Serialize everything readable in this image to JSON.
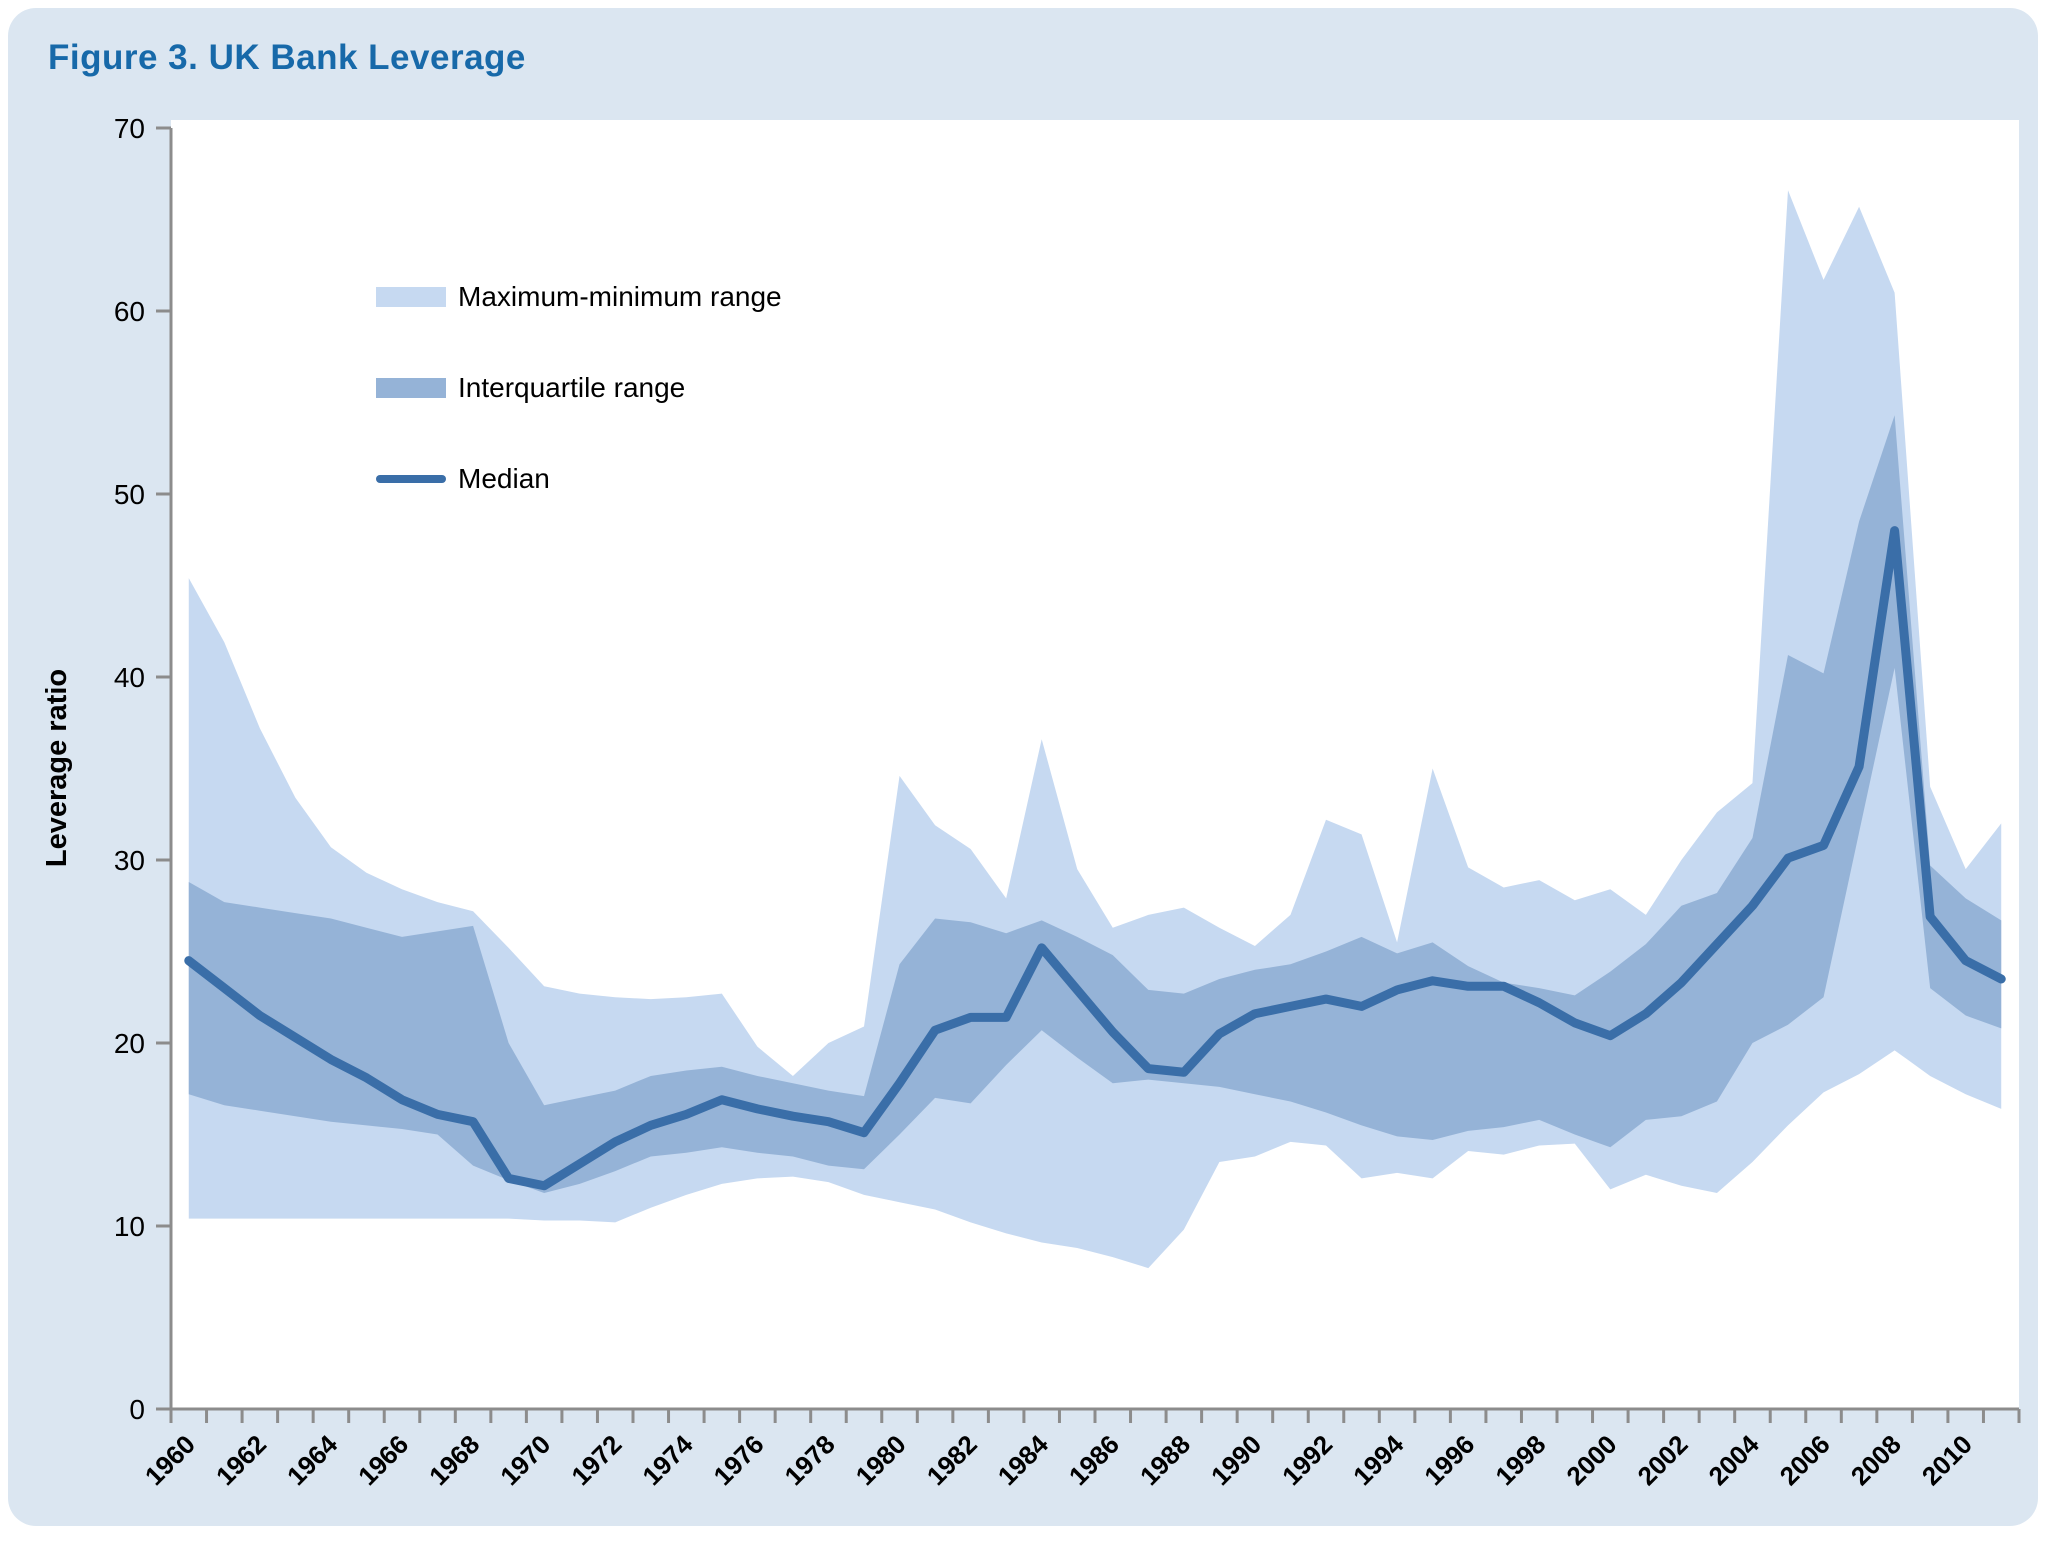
{
  "title": "Figure 3. UK Bank Leverage",
  "y_axis": {
    "label": "Leverage ratio",
    "ticks": [
      0,
      10,
      20,
      30,
      40,
      50,
      60,
      70
    ],
    "min": 0,
    "max": 70
  },
  "x_axis": {
    "labels": [
      "1960",
      "1962",
      "1964",
      "1966",
      "1968",
      "1970",
      "1972",
      "1974",
      "1976",
      "1978",
      "1980",
      "1982",
      "1984",
      "1986",
      "1988",
      "1990",
      "1992",
      "1994",
      "1996",
      "1998",
      "2000",
      "2002",
      "2004",
      "2006",
      "2008",
      "2010"
    ]
  },
  "legend": {
    "items": [
      {
        "label": "Maximum-minimum range",
        "type": "band",
        "color": "#C6D9F1"
      },
      {
        "label": "Interquartile range",
        "type": "band",
        "color": "#95B3D7"
      },
      {
        "label": "Median",
        "type": "line",
        "color": "#3A6EA8"
      }
    ]
  },
  "colors": {
    "page_background": "#DBE6F1",
    "plot_background": "#FFFFFF",
    "band_light": "#C6D9F1",
    "band_medium": "#95B3D7",
    "median_line": "#3A6EA8",
    "axis": "#8C8C8C",
    "title_text": "#1769A9"
  },
  "chart_data": {
    "type": "area",
    "title": "Figure 3. UK Bank Leverage",
    "xlabel": "",
    "ylabel": "Leverage ratio",
    "ylim": [
      0,
      70
    ],
    "grid": false,
    "legend_position": "upper-left",
    "x": [
      1960,
      1961,
      1962,
      1963,
      1964,
      1965,
      1966,
      1967,
      1968,
      1969,
      1970,
      1971,
      1972,
      1973,
      1974,
      1975,
      1976,
      1977,
      1978,
      1979,
      1980,
      1981,
      1982,
      1983,
      1984,
      1985,
      1986,
      1987,
      1988,
      1989,
      1990,
      1991,
      1992,
      1993,
      1994,
      1995,
      1996,
      1997,
      1998,
      1999,
      2000,
      2001,
      2002,
      2003,
      2004,
      2005,
      2006,
      2007,
      2008,
      2009,
      2010,
      2011
    ],
    "series": [
      {
        "name": "Maximum",
        "values": [
          45.4,
          41.9,
          37.2,
          33.4,
          30.7,
          29.3,
          28.4,
          27.7,
          27.2,
          25.2,
          23.1,
          22.7,
          22.5,
          22.4,
          22.5,
          22.7,
          19.8,
          18.2,
          20.0,
          20.9,
          34.6,
          31.9,
          30.6,
          27.9,
          36.6,
          29.5,
          26.3,
          27.0,
          27.4,
          26.3,
          25.3,
          27.0,
          32.2,
          31.4,
          25.5,
          35.0,
          29.6,
          28.5,
          28.9,
          27.8,
          28.4,
          27.0,
          30.0,
          32.6,
          34.2,
          66.6,
          61.7,
          65.7,
          61.0,
          34.0,
          29.5,
          32.0
        ]
      },
      {
        "name": "75th percentile",
        "values": [
          28.8,
          27.7,
          27.4,
          27.1,
          26.8,
          26.3,
          25.8,
          26.1,
          26.4,
          20.0,
          16.6,
          17.0,
          17.4,
          18.2,
          18.5,
          18.7,
          18.2,
          17.8,
          17.4,
          17.1,
          24.3,
          26.8,
          26.6,
          26.0,
          26.7,
          25.8,
          24.8,
          22.9,
          22.7,
          23.5,
          24.0,
          24.3,
          25.0,
          25.8,
          24.9,
          25.5,
          24.2,
          23.3,
          23.0,
          22.6,
          23.9,
          25.4,
          27.5,
          28.2,
          31.2,
          41.2,
          40.2,
          48.5,
          54.3,
          29.7,
          27.9,
          26.7
        ]
      },
      {
        "name": "Median",
        "values": [
          24.5,
          23.0,
          21.5,
          20.3,
          19.1,
          18.1,
          16.9,
          16.1,
          15.7,
          12.6,
          12.2,
          13.4,
          14.6,
          15.5,
          16.1,
          16.9,
          16.4,
          16.0,
          15.7,
          15.1,
          17.8,
          20.7,
          21.4,
          21.4,
          25.2,
          22.9,
          20.6,
          18.6,
          18.4,
          20.5,
          21.6,
          22.0,
          22.4,
          22.0,
          22.9,
          23.4,
          23.1,
          23.1,
          22.2,
          21.1,
          20.4,
          21.6,
          23.3,
          25.4,
          27.5,
          30.1,
          30.8,
          35.1,
          48.0,
          26.9,
          24.5,
          23.5
        ]
      },
      {
        "name": "25th percentile",
        "values": [
          17.2,
          16.6,
          16.3,
          16.0,
          15.7,
          15.5,
          15.3,
          15.0,
          13.3,
          12.5,
          11.8,
          12.3,
          13.0,
          13.8,
          14.0,
          14.3,
          14.0,
          13.8,
          13.3,
          13.1,
          15.0,
          17.0,
          16.7,
          18.8,
          20.7,
          19.2,
          17.8,
          18.0,
          17.8,
          17.6,
          17.2,
          16.8,
          16.2,
          15.5,
          14.9,
          14.7,
          15.2,
          15.4,
          15.8,
          15.0,
          14.3,
          15.8,
          16.0,
          16.8,
          20.0,
          21.0,
          22.5,
          31.5,
          40.5,
          23.0,
          21.5,
          20.8
        ]
      },
      {
        "name": "Minimum",
        "values": [
          10.4,
          10.4,
          10.4,
          10.4,
          10.4,
          10.4,
          10.4,
          10.4,
          10.4,
          10.4,
          10.3,
          10.3,
          10.2,
          11.0,
          11.7,
          12.3,
          12.6,
          12.7,
          12.4,
          11.7,
          11.3,
          10.9,
          10.2,
          9.6,
          9.1,
          8.8,
          8.3,
          7.7,
          9.8,
          13.5,
          13.8,
          14.6,
          14.4,
          12.6,
          12.9,
          12.6,
          14.1,
          13.9,
          14.4,
          14.5,
          12.0,
          12.8,
          12.2,
          11.8,
          13.5,
          15.5,
          17.3,
          18.3,
          19.6,
          18.2,
          17.2,
          16.4
        ]
      }
    ]
  }
}
